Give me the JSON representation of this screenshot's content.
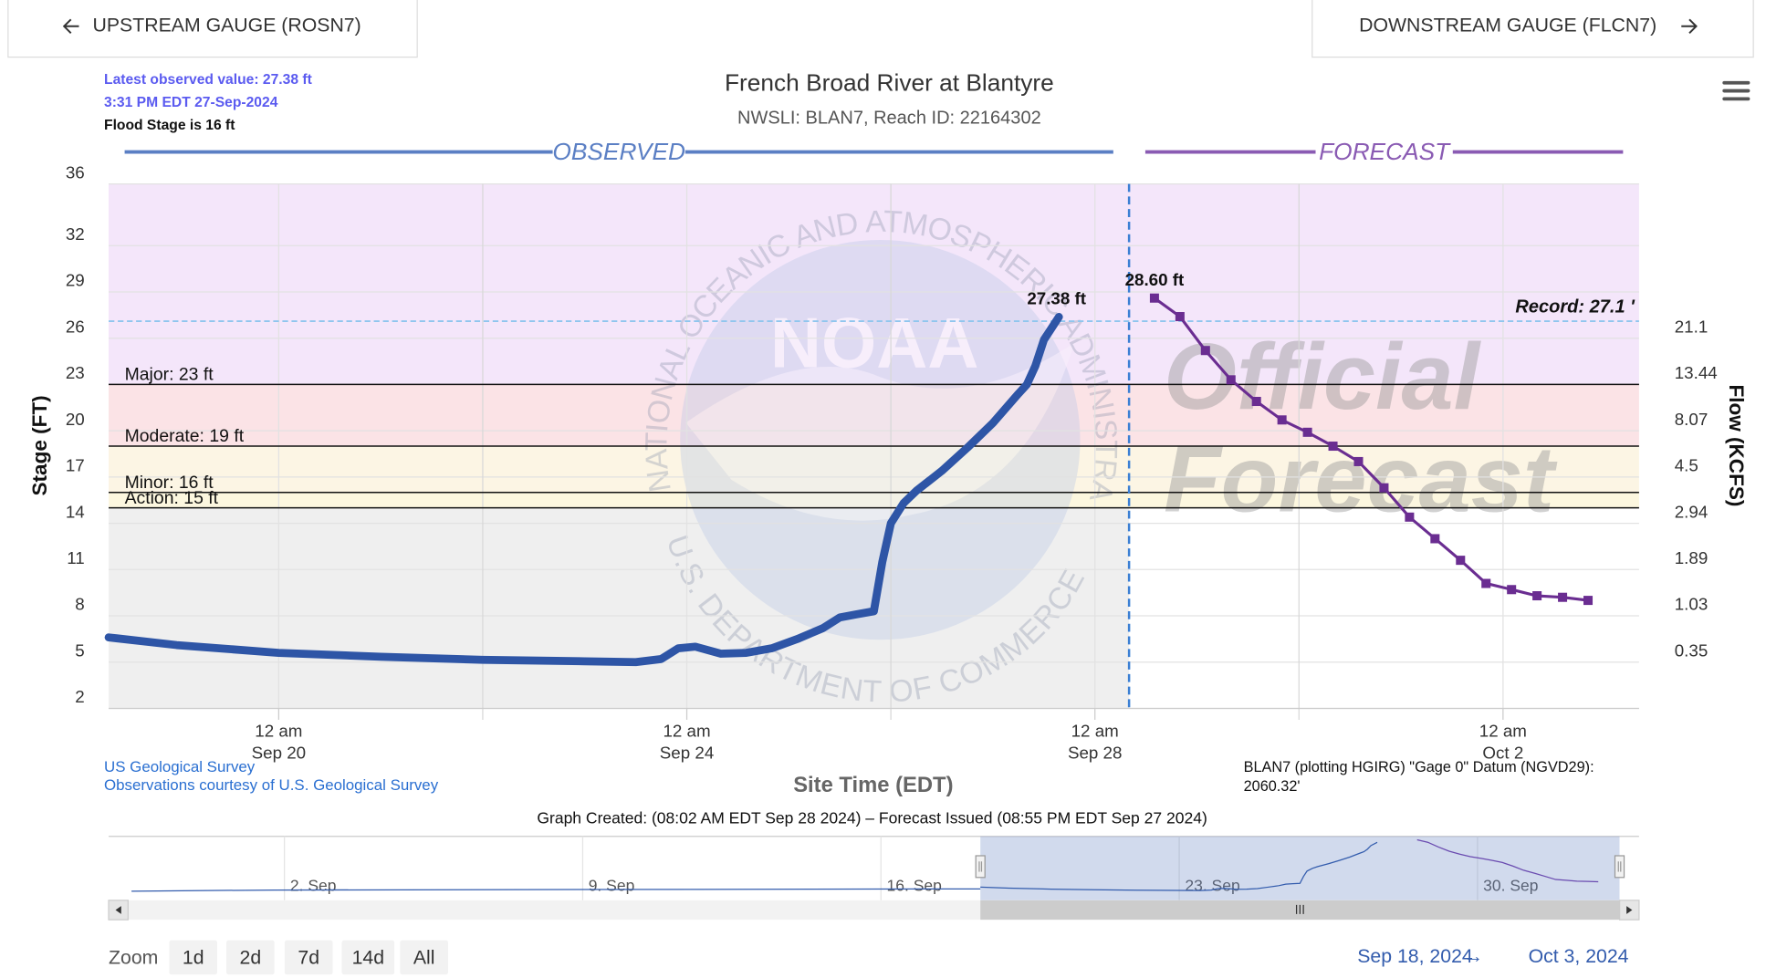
{
  "ui": {
    "upstream_button": "UPSTREAM GAUGE (ROSN7)",
    "downstream_button": "DOWNSTREAM GAUGE (FLCN7)",
    "latest_observed": "Latest observed value: 27.38 ft",
    "latest_time": "3:31 PM EDT 27-Sep-2024",
    "flood_stage": "Flood Stage is 16 ft",
    "credit_1": "US Geological Survey",
    "credit_2": "Observations courtesy of U.S. Geological Survey",
    "datum": "BLAN7 (plotting HGIRG) \"Gage 0\" Datum (NGVD29):",
    "datum_value": "2060.32'",
    "graph_created": "Graph Created: (08:02 AM EDT Sep 28 2024) – Forecast Issued (08:55 PM EDT Sep 27 2024)",
    "watermark_1": "Official",
    "watermark_2": "Forecast",
    "logo_text": "NOAA",
    "logo_ring_top": "NATIONAL OCEANIC AND ATMOSPHERIC ADMINISTRATION",
    "logo_ring_bottom": "U.S. DEPARTMENT OF COMMERCE",
    "zoom_label": "Zoom",
    "zoom_buttons": [
      "1d",
      "2d",
      "7d",
      "14d",
      "All"
    ],
    "range_from": "Sep 18, 2024",
    "range_separator": "→",
    "range_to": "Oct 3, 2024"
  },
  "chart_data": {
    "type": "line",
    "title": "French Broad River at Blantyre",
    "subtitle": "NWSLI: BLAN7, Reach ID: 22164302",
    "x_label": "Site Time (EDT)",
    "y_label": "Stage (FT)",
    "y2_label": "Flow (KCFS)",
    "xlim": [
      "2024-09-18T08:00",
      "2024-10-03T08:00"
    ],
    "xticks": [
      {
        "value": "2024-09-20T00:00",
        "label": "12 am",
        "date": "Sep 20"
      },
      {
        "value": "2024-09-24T00:00",
        "label": "12 am",
        "date": "Sep 24"
      },
      {
        "value": "2024-09-28T00:00",
        "label": "12 am",
        "date": "Sep 28"
      },
      {
        "value": "2024-10-02T00:00",
        "label": "12 am",
        "date": "Oct 2"
      }
    ],
    "ylim": [
      2,
      36
    ],
    "yticks": [
      2,
      5,
      8,
      11,
      14,
      17,
      20,
      23,
      26,
      29,
      32,
      36
    ],
    "y2ticks": [
      0.35,
      1.03,
      1.89,
      2.94,
      4.5,
      8.07,
      13.44,
      21.1
    ],
    "grid": true,
    "now": "2024-09-28T08:02",
    "thresholds": [
      {
        "value": 23,
        "label": "Major: 23 ft",
        "color": "#fbe3e6"
      },
      {
        "value": 19,
        "label": "Moderate: 19 ft",
        "color": "#fcf5e4"
      },
      {
        "value": 16,
        "label": "Minor: 16 ft",
        "color": "#fcf7df"
      },
      {
        "value": 15,
        "label": "Action: 15 ft",
        "color": "#fbf5d8"
      }
    ],
    "above_major_color": "#f4e6fa",
    "record": {
      "value": 27.1,
      "label": "Record: 27.1 '"
    },
    "series": [
      {
        "name": "OBSERVED",
        "color": "#2e55a6",
        "header_color": "#5b7fc4",
        "x": [
          "2024-09-18T08:00",
          "2024-09-19T00:00",
          "2024-09-20T00:00",
          "2024-09-21T00:00",
          "2024-09-22T00:00",
          "2024-09-23T00:00",
          "2024-09-23T12:00",
          "2024-09-23T18:00",
          "2024-09-23T22:00",
          "2024-09-24T02:00",
          "2024-09-24T08:00",
          "2024-09-24T14:00",
          "2024-09-24T20:00",
          "2024-09-25T02:00",
          "2024-09-25T08:00",
          "2024-09-25T12:00",
          "2024-09-25T16:00",
          "2024-09-25T20:00",
          "2024-09-25T22:00",
          "2024-09-26T00:00",
          "2024-09-26T03:00",
          "2024-09-26T06:00",
          "2024-09-26T12:00",
          "2024-09-26T18:00",
          "2024-09-27T00:00",
          "2024-09-27T06:00",
          "2024-09-27T08:00",
          "2024-09-27T10:00",
          "2024-09-27T12:00",
          "2024-09-27T15:31"
        ],
        "values": [
          6.6,
          6.1,
          5.6,
          5.35,
          5.15,
          5.05,
          5.0,
          5.2,
          5.9,
          6.0,
          5.55,
          5.6,
          5.9,
          6.5,
          7.2,
          7.9,
          8.1,
          8.3,
          11.5,
          14.0,
          15.3,
          16.1,
          17.4,
          18.9,
          20.5,
          22.4,
          23.0,
          24.2,
          25.9,
          27.38
        ],
        "value_labels": [
          null,
          null,
          null,
          null,
          null,
          null,
          null,
          null,
          null,
          null,
          null,
          null,
          null,
          null,
          null,
          null,
          null,
          null,
          null,
          null,
          null,
          null,
          null,
          null,
          null,
          null,
          null,
          null,
          null,
          "27.38 ft"
        ]
      },
      {
        "name": "FORECAST",
        "color": "#6a2d91",
        "header_color": "#8a5bb3",
        "x": [
          "2024-09-28T14:00",
          "2024-09-28T20:00",
          "2024-09-29T02:00",
          "2024-09-29T08:00",
          "2024-09-29T14:00",
          "2024-09-29T20:00",
          "2024-09-30T02:00",
          "2024-09-30T08:00",
          "2024-09-30T14:00",
          "2024-09-30T20:00",
          "2024-10-01T02:00",
          "2024-10-01T08:00",
          "2024-10-01T14:00",
          "2024-10-01T20:00",
          "2024-10-02T02:00",
          "2024-10-02T08:00",
          "2024-10-02T14:00",
          "2024-10-02T20:00"
        ],
        "values": [
          28.6,
          27.4,
          25.2,
          23.3,
          21.9,
          20.7,
          19.9,
          19.0,
          18.0,
          16.3,
          14.4,
          13.0,
          11.6,
          10.1,
          9.7,
          9.3,
          9.2,
          9.0
        ],
        "value_labels": [
          "28.60 ft",
          null,
          null,
          null,
          null,
          null,
          null,
          null,
          null,
          null,
          null,
          null,
          null,
          null,
          null,
          null,
          null,
          null
        ]
      }
    ],
    "navigator": {
      "xlim": [
        "2024-08-28T21:00",
        "2024-10-03T19:00"
      ],
      "xticks": [
        {
          "value": "2024-09-02T00:00",
          "label": "2. Sep"
        },
        {
          "value": "2024-09-09T00:00",
          "label": "9. Sep"
        },
        {
          "value": "2024-09-16T00:00",
          "label": "16. Sep"
        },
        {
          "value": "2024-09-23T00:00",
          "label": "23. Sep"
        },
        {
          "value": "2024-09-30T00:00",
          "label": "30. Sep"
        }
      ]
    }
  }
}
